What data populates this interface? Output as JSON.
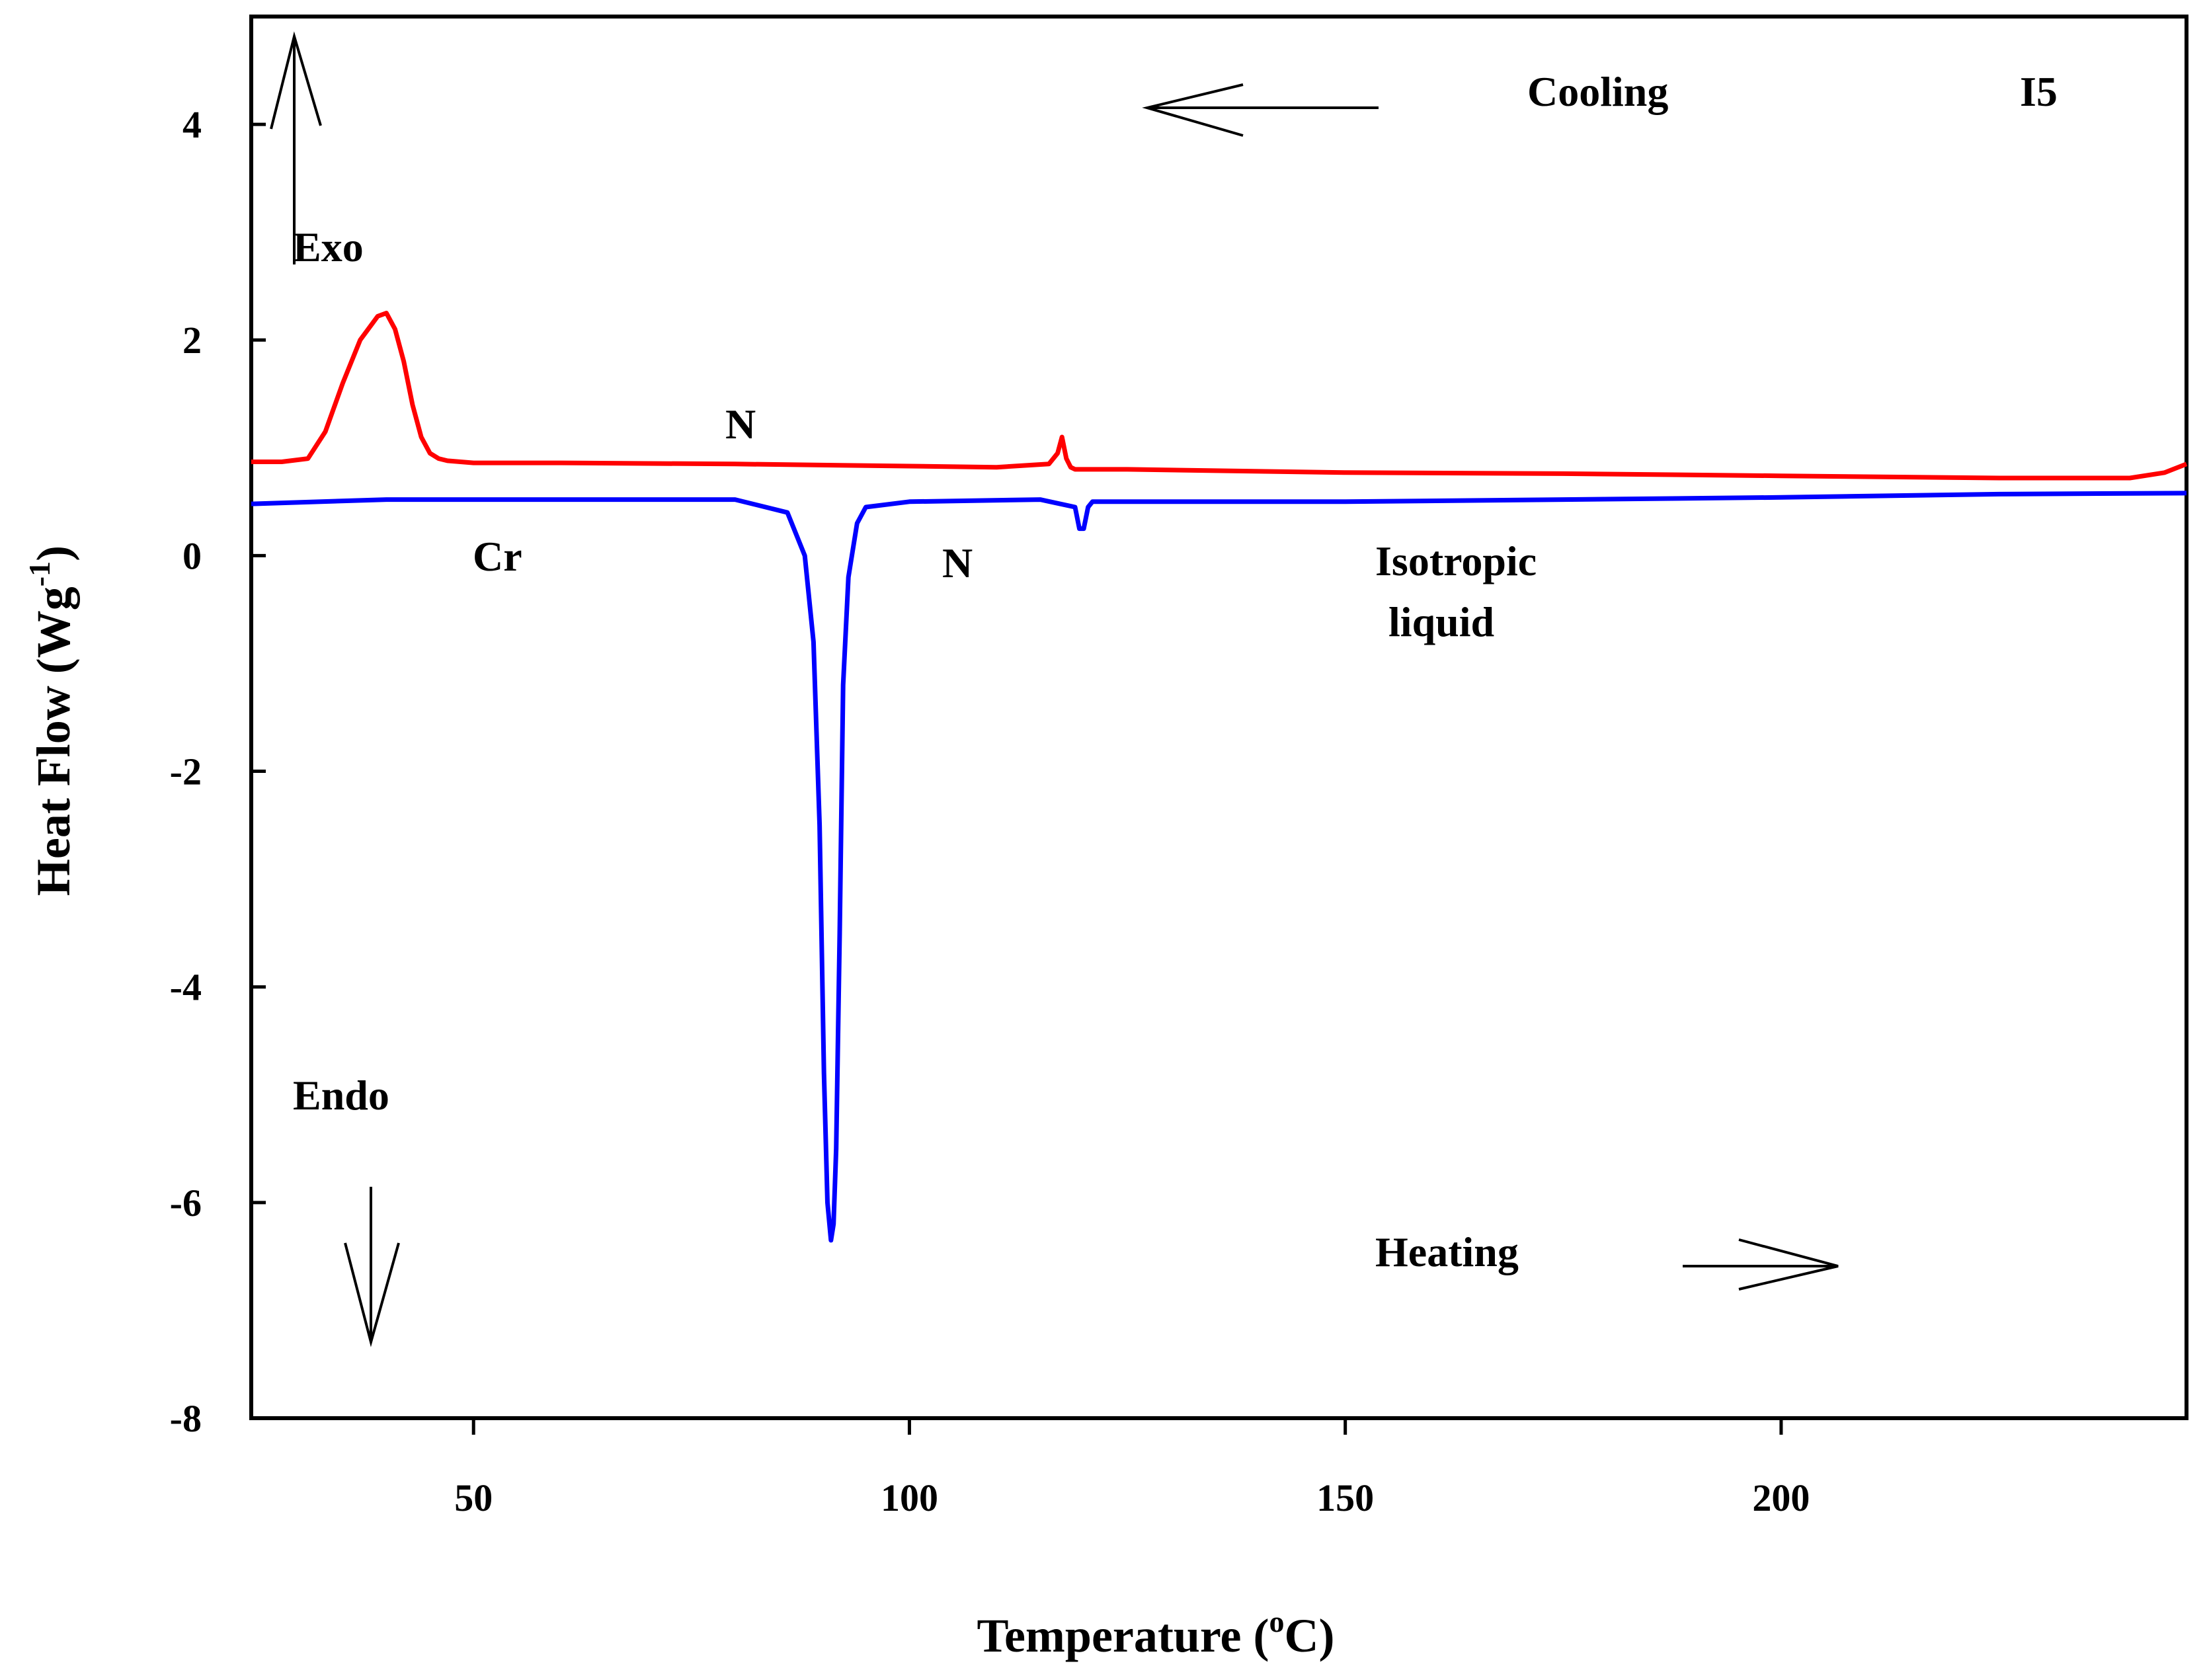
{
  "chart_data": {
    "type": "line",
    "title": "",
    "xlabel": "Temperature (oC)",
    "xlabel_parts": {
      "pre": "Temperature (",
      "sup": "o",
      "post": "C)"
    },
    "ylabel": "Heat Flow (Wg-1)",
    "ylabel_parts": {
      "pre": "Heat Flow (Wg",
      "sup": "-1",
      "post": ")"
    },
    "xlim": [
      24.5,
      246.5
    ],
    "ylim": [
      -8,
      5
    ],
    "xticks": [
      50,
      100,
      150,
      200
    ],
    "xtick_labels": [
      "50",
      "100",
      "150",
      "200"
    ],
    "yticks": [
      4,
      2,
      0,
      -2,
      -4,
      -6,
      -8
    ],
    "ytick_labels": [
      "4",
      "2",
      "0",
      "-2",
      "-4",
      "-6",
      "-8"
    ],
    "grid": false,
    "series": [
      {
        "name": "Cooling",
        "color": "#ff0000",
        "x": [
          24.5,
          28,
          31,
          33,
          35,
          37,
          39,
          40,
          41,
          42,
          43,
          44,
          45,
          46,
          47,
          50,
          60,
          80,
          100,
          110,
          116,
          117,
          117.5,
          118,
          118.5,
          119,
          120,
          125,
          150,
          175,
          200,
          225,
          240,
          244,
          246.5
        ],
        "y": [
          0.87,
          0.87,
          0.9,
          1.15,
          1.6,
          2.0,
          2.22,
          2.25,
          2.1,
          1.8,
          1.4,
          1.1,
          0.95,
          0.9,
          0.88,
          0.86,
          0.86,
          0.85,
          0.83,
          0.82,
          0.85,
          0.95,
          1.1,
          0.9,
          0.82,
          0.8,
          0.8,
          0.8,
          0.77,
          0.76,
          0.74,
          0.72,
          0.72,
          0.77,
          0.85
        ]
      },
      {
        "name": "Heating",
        "color": "#0000ff",
        "x": [
          24.5,
          40,
          60,
          80,
          86,
          88,
          89,
          89.7,
          90.2,
          90.6,
          91.0,
          91.3,
          91.6,
          92.0,
          92.4,
          93.0,
          94,
          95,
          100,
          115,
          119,
          119.5,
          120,
          120.5,
          121,
          125,
          150,
          175,
          200,
          225,
          246.5
        ],
        "y": [
          0.48,
          0.52,
          0.52,
          0.52,
          0.4,
          0.0,
          -0.8,
          -2.5,
          -4.8,
          -6.0,
          -6.35,
          -6.2,
          -5.5,
          -3.5,
          -1.2,
          -0.2,
          0.3,
          0.45,
          0.5,
          0.52,
          0.45,
          0.25,
          0.25,
          0.45,
          0.5,
          0.5,
          0.5,
          0.52,
          0.54,
          0.57,
          0.58
        ]
      }
    ],
    "annotations": {
      "cooling": "Cooling",
      "sample": "I5",
      "exo": "Exo",
      "endo": "Endo",
      "heating": "Heating",
      "n_cooling": "N",
      "cr": "Cr",
      "n_heating": "N",
      "iso_line1": "Isotropic",
      "iso_line2": "liquid"
    }
  }
}
